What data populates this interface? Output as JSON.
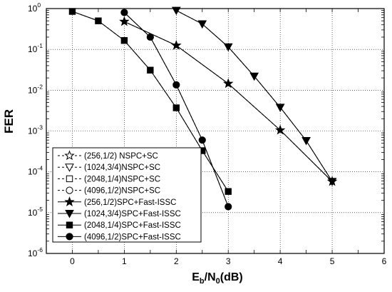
{
  "chart_data": {
    "type": "line",
    "xlabel": {
      "main": "E",
      "sub1": "b",
      "mid": "/N",
      "sub2": "0",
      "tail": "(dB)"
    },
    "ylabel": "FER",
    "xlim": [
      -0.5,
      6
    ],
    "x_ticks": [
      0,
      1,
      2,
      3,
      4,
      5,
      6
    ],
    "ylim_log10": [
      -6,
      0
    ],
    "y_ticks": [
      {
        "mantissa": "10",
        "exp": "0"
      },
      {
        "mantissa": "10",
        "exp": "-1"
      },
      {
        "mantissa": "10",
        "exp": "-2"
      },
      {
        "mantissa": "10",
        "exp": "-3"
      },
      {
        "mantissa": "10",
        "exp": "-4"
      },
      {
        "mantissa": "10",
        "exp": "-5"
      },
      {
        "mantissa": "10",
        "exp": "-6"
      }
    ],
    "y_scale": "log",
    "legend_position": "bottom-left",
    "series": [
      {
        "name": "(256,1/2) NSPC+SC",
        "marker": "star",
        "filled": false,
        "dashed": true,
        "x": [
          1,
          2,
          3,
          4,
          5
        ],
        "y": [
          0.48,
          0.125,
          0.0145,
          0.00105,
          5.8e-05
        ]
      },
      {
        "name": "(1024,3/4)NSPC+SC",
        "marker": "triangle-down",
        "filled": false,
        "dashed": true,
        "x": [
          2,
          2.5,
          3,
          3.5,
          4,
          4.5,
          5
        ],
        "y": [
          0.9,
          0.42,
          0.115,
          0.022,
          0.0038,
          0.00058,
          5.8e-05
        ]
      },
      {
        "name": "(2048,1/4)NSPC+SC",
        "marker": "square",
        "filled": false,
        "dashed": true,
        "x": [
          0,
          0.5,
          1,
          1.5,
          2,
          2.5,
          3
        ],
        "y": [
          0.85,
          0.5,
          0.165,
          0.031,
          0.0037,
          0.00033,
          3.3e-05
        ]
      },
      {
        "name": "(4096,1/2)NSPC+SC",
        "marker": "circle",
        "filled": false,
        "dashed": true,
        "x": [
          1,
          1.5,
          2,
          2.5,
          3
        ],
        "y": [
          0.8,
          0.2,
          0.0135,
          0.0006,
          1.4e-05
        ]
      },
      {
        "name": "(256,1/2)SPC+Fast-ISSC",
        "marker": "star",
        "filled": true,
        "dashed": false,
        "x": [
          1,
          2,
          3,
          4,
          5
        ],
        "y": [
          0.48,
          0.125,
          0.0145,
          0.00105,
          5.8e-05
        ]
      },
      {
        "name": "(1024,3/4)SPC+Fast-ISSC",
        "marker": "triangle-down",
        "filled": true,
        "dashed": false,
        "x": [
          2,
          2.5,
          3,
          3.5,
          4,
          4.5,
          5
        ],
        "y": [
          0.9,
          0.42,
          0.115,
          0.022,
          0.0038,
          0.00058,
          5.8e-05
        ]
      },
      {
        "name": "(2048,1/4)SPC+Fast-ISSC",
        "marker": "square",
        "filled": true,
        "dashed": false,
        "x": [
          0,
          0.5,
          1,
          1.5,
          2,
          2.5,
          3
        ],
        "y": [
          0.85,
          0.5,
          0.165,
          0.031,
          0.0037,
          0.00033,
          3.3e-05
        ]
      },
      {
        "name": "(4096,1/2)SPC+Fast-ISSC",
        "marker": "circle",
        "filled": true,
        "dashed": false,
        "x": [
          1,
          1.5,
          2,
          2.5,
          3
        ],
        "y": [
          0.8,
          0.2,
          0.0135,
          0.0006,
          1.4e-05
        ]
      }
    ]
  }
}
